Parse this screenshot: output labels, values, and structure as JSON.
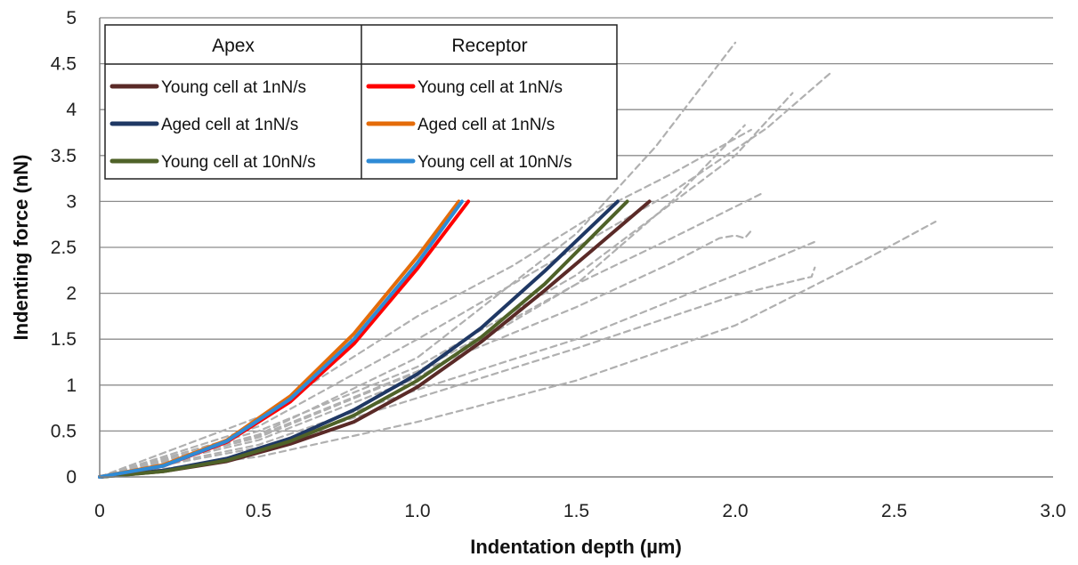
{
  "chart_data": {
    "type": "line",
    "title": "",
    "xlabel": "Indentation depth (µm)",
    "ylabel": "Indenting force (nN)",
    "xlim": [
      0,
      3.0
    ],
    "ylim": [
      0,
      5
    ],
    "x_ticks": [
      "0",
      "0.5",
      "1.0",
      "1.5",
      "2.0",
      "2.5",
      "3.0"
    ],
    "y_ticks": [
      "0",
      "0.5",
      "1",
      "1.5",
      "2",
      "2.5",
      "3",
      "3.5",
      "4",
      "4.5",
      "5"
    ],
    "grid": "horizontal",
    "legend": {
      "placement": "top-left",
      "columns": [
        "Apex",
        "Receptor"
      ]
    },
    "series": [
      {
        "name": "Young cell at 1nN/s",
        "group": "Apex",
        "color": "#5a2a27",
        "style": "solid",
        "x": [
          0,
          0.2,
          0.4,
          0.6,
          0.8,
          1.0,
          1.2,
          1.4,
          1.55,
          1.73
        ],
        "y": [
          0,
          0.06,
          0.17,
          0.36,
          0.6,
          0.98,
          1.47,
          2.03,
          2.47,
          3.0
        ]
      },
      {
        "name": "Aged cell at 1nN/s",
        "group": "Apex",
        "color": "#1f3864",
        "style": "solid",
        "x": [
          0,
          0.2,
          0.4,
          0.6,
          0.8,
          1.0,
          1.2,
          1.4,
          1.63
        ],
        "y": [
          0,
          0.07,
          0.2,
          0.42,
          0.73,
          1.12,
          1.62,
          2.24,
          3.0
        ]
      },
      {
        "name": "Young cell at 10nN/s",
        "group": "Apex",
        "color": "#4f6228",
        "style": "solid",
        "x": [
          0,
          0.2,
          0.4,
          0.6,
          0.8,
          1.0,
          1.2,
          1.4,
          1.66
        ],
        "y": [
          0,
          0.06,
          0.18,
          0.39,
          0.67,
          1.05,
          1.52,
          2.1,
          3.0
        ]
      },
      {
        "name": "Young cell at 1nN/s",
        "group": "Receptor",
        "color": "#ff0000",
        "style": "solid",
        "x": [
          0,
          0.2,
          0.4,
          0.6,
          0.8,
          1.0,
          1.16
        ],
        "y": [
          0,
          0.12,
          0.38,
          0.82,
          1.45,
          2.27,
          3.0
        ]
      },
      {
        "name": "Aged cell at 1nN/s",
        "group": "Receptor",
        "color": "#e46c0a",
        "style": "solid",
        "x": [
          0,
          0.2,
          0.4,
          0.6,
          0.8,
          1.0,
          1.13
        ],
        "y": [
          0,
          0.13,
          0.4,
          0.88,
          1.56,
          2.4,
          3.0
        ]
      },
      {
        "name": "Young cell at 10nN/s",
        "group": "Receptor",
        "color": "#2e8bd6",
        "style": "solid",
        "x": [
          0,
          0.2,
          0.4,
          0.6,
          0.8,
          1.0,
          1.14
        ],
        "y": [
          0,
          0.12,
          0.39,
          0.85,
          1.5,
          2.33,
          3.0
        ]
      },
      {
        "name": "",
        "color": "#b0b0b0",
        "style": "dashed",
        "x": [
          0,
          0.5,
          1.0,
          1.5,
          1.75,
          2.0
        ],
        "y": [
          0,
          0.46,
          1.3,
          2.65,
          3.6,
          4.73
        ]
      },
      {
        "name": "",
        "color": "#b0b0b0",
        "style": "dashed",
        "x": [
          0,
          0.5,
          1.0,
          1.5,
          1.8,
          2.1,
          2.3
        ],
        "y": [
          0,
          0.55,
          1.5,
          2.5,
          3.1,
          3.8,
          4.4
        ]
      },
      {
        "name": "",
        "color": "#b0b0b0",
        "style": "dashed",
        "x": [
          0,
          0.5,
          1.0,
          1.5,
          2.0,
          2.18
        ],
        "y": [
          0,
          0.5,
          1.2,
          2.2,
          3.5,
          4.18
        ]
      },
      {
        "name": "",
        "color": "#b0b0b0",
        "style": "dashed",
        "x": [
          0,
          0.5,
          1.0,
          1.5,
          1.8,
          2.03
        ],
        "y": [
          0,
          0.4,
          1.08,
          2.1,
          3.0,
          3.83
        ]
      },
      {
        "name": "",
        "color": "#b0b0b0",
        "style": "dashed",
        "x": [
          0,
          0.5,
          1.0,
          1.3,
          1.6,
          1.8,
          2.05
        ],
        "y": [
          0,
          0.65,
          1.75,
          2.3,
          2.95,
          3.3,
          3.78
        ]
      },
      {
        "name": "",
        "color": "#b0b0b0",
        "style": "dashed",
        "x": [
          0,
          0.5,
          1.0,
          1.5,
          1.8,
          2.08
        ],
        "y": [
          0,
          0.45,
          1.15,
          2.1,
          2.6,
          3.08
        ]
      },
      {
        "name": "",
        "color": "#b0b0b0",
        "style": "dashed",
        "x": [
          0,
          0.5,
          1.0,
          1.5,
          1.8,
          1.95,
          2.0,
          2.03,
          2.05
        ],
        "y": [
          0,
          0.43,
          1.14,
          1.85,
          2.33,
          2.6,
          2.63,
          2.6,
          2.68
        ]
      },
      {
        "name": "",
        "color": "#b0b0b0",
        "style": "dashed",
        "x": [
          0,
          0.5,
          1.0,
          1.5,
          2.0,
          2.25
        ],
        "y": [
          0,
          0.35,
          0.95,
          1.5,
          2.2,
          2.56
        ]
      },
      {
        "name": "",
        "color": "#b0b0b0",
        "style": "dashed",
        "x": [
          0,
          0.5,
          1.0,
          1.5,
          2.0,
          2.24,
          2.25
        ],
        "y": [
          0,
          0.32,
          0.86,
          1.4,
          1.98,
          2.18,
          2.28
        ]
      },
      {
        "name": "",
        "color": "#b0b0b0",
        "style": "dashed",
        "x": [
          0,
          0.5,
          1.0,
          1.5,
          2.0,
          2.4,
          2.63
        ],
        "y": [
          0,
          0.22,
          0.6,
          1.05,
          1.65,
          2.35,
          2.78
        ]
      }
    ]
  }
}
